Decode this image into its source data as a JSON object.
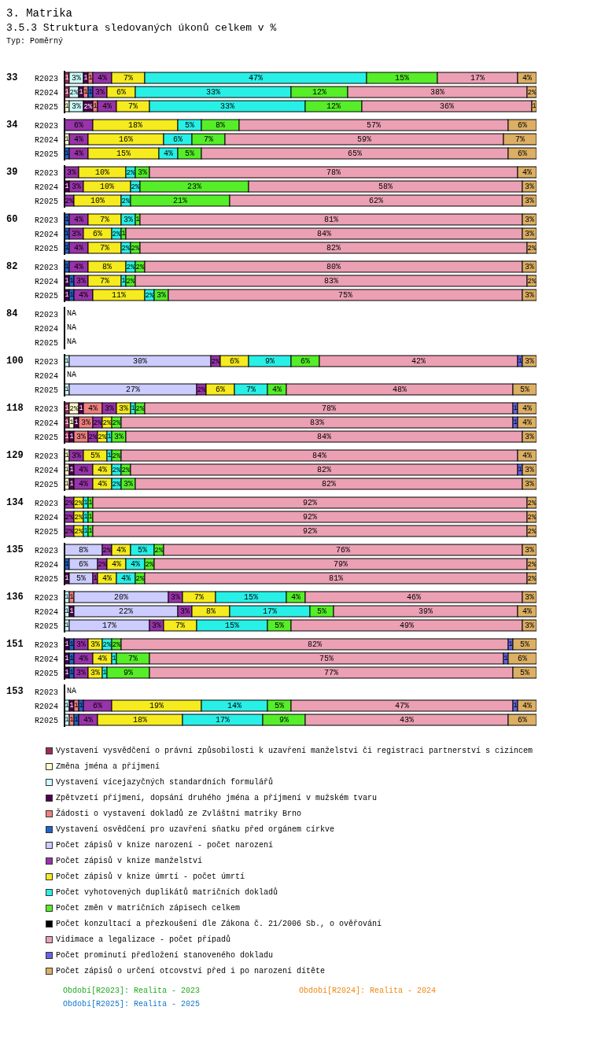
{
  "chart_data": [
    {
      "type": "other",
      "title": "3. Matrika",
      "subtitle": "3.5.3 Struktura sledovaných úkonů celkem v %",
      "annotations": [
        "Typ: Poměrný"
      ]
    },
    {
      "type": "bar",
      "orientation": "horizontal",
      "stacked": true,
      "title": "33",
      "categories": [
        "R2023",
        "R2024",
        "R2025"
      ],
      "series": [
        {
          "color": "#9b2d5a",
          "values": [
            1,
            1,
            null
          ],
          "value_labels": [
            "1",
            "1",
            null
          ]
        },
        {
          "color": "#ffffcc",
          "values": [
            null,
            null,
            1
          ],
          "value_labels": [
            null,
            null,
            "1"
          ]
        },
        {
          "color": "#ccffff",
          "values": [
            3,
            2,
            3
          ],
          "value_labels": [
            "3%",
            "2%",
            "3%"
          ]
        },
        {
          "color": "#500050",
          "values": [
            1,
            1,
            2
          ],
          "value_labels": [
            "1",
            "1",
            "2%"
          ]
        },
        {
          "color": "#f08080",
          "values": [
            1,
            1,
            1
          ],
          "value_labels": [
            "1",
            "1",
            "1"
          ]
        },
        {
          "color": "#1e64c8",
          "values": [
            null,
            1,
            null
          ],
          "value_labels": [
            null,
            "1",
            null
          ]
        },
        {
          "color": "#9933aa",
          "values": [
            4,
            3,
            4
          ],
          "value_labels": [
            "4%",
            "3%",
            "4%"
          ]
        },
        {
          "color": "#f5eb1e",
          "values": [
            7,
            6,
            7
          ],
          "value_labels": [
            "7%",
            "6%",
            "7%"
          ]
        },
        {
          "color": "#28f0e6",
          "values": [
            47,
            33,
            33
          ],
          "value_labels": [
            "47%",
            "33%",
            "33%"
          ]
        },
        {
          "color": "#55ee28",
          "values": [
            15,
            12,
            12
          ],
          "value_labels": [
            "15%",
            "12%",
            "12%"
          ]
        },
        {
          "color": "#eba0b4",
          "values": [
            17,
            38,
            36
          ],
          "value_labels": [
            "17%",
            "38%",
            "36%"
          ]
        },
        {
          "color": "#dcaf64",
          "values": [
            4,
            2,
            1
          ],
          "value_labels": [
            "4%",
            "2%",
            "1"
          ]
        }
      ]
    },
    {
      "type": "bar",
      "orientation": "horizontal",
      "stacked": true,
      "title": "34",
      "categories": [
        "R2023",
        "R2024",
        "R2025"
      ],
      "series": [
        {
          "color": "#ffffcc",
          "values": [
            null,
            1,
            null
          ],
          "value_labels": [
            null,
            "1",
            null
          ]
        },
        {
          "color": "#1e64c8",
          "values": [
            null,
            null,
            1
          ],
          "value_labels": [
            null,
            null,
            "1"
          ]
        },
        {
          "color": "#9933aa",
          "values": [
            6,
            4,
            4
          ],
          "value_labels": [
            "6%",
            "4%",
            "4%"
          ]
        },
        {
          "color": "#f5eb1e",
          "values": [
            18,
            16,
            15
          ],
          "value_labels": [
            "18%",
            "16%",
            "15%"
          ]
        },
        {
          "color": "#28f0e6",
          "values": [
            5,
            6,
            4
          ],
          "value_labels": [
            "5%",
            "6%",
            "4%"
          ]
        },
        {
          "color": "#55ee28",
          "values": [
            8,
            7,
            5
          ],
          "value_labels": [
            "8%",
            "7%",
            "5%"
          ]
        },
        {
          "color": "#eba0b4",
          "values": [
            57,
            59,
            65
          ],
          "value_labels": [
            "57%",
            "59%",
            "65%"
          ]
        },
        {
          "color": "#dcaf64",
          "values": [
            6,
            7,
            6
          ],
          "value_labels": [
            "6%",
            "7%",
            "6%"
          ]
        }
      ]
    },
    {
      "type": "bar",
      "orientation": "horizontal",
      "stacked": true,
      "title": "39",
      "categories": [
        "R2023",
        "R2024",
        "R2025"
      ],
      "series": [
        {
          "color": "#500050",
          "values": [
            null,
            1,
            null
          ],
          "value_labels": [
            null,
            "1",
            null
          ]
        },
        {
          "color": "#9933aa",
          "values": [
            3,
            3,
            2
          ],
          "value_labels": [
            "3%",
            "3%",
            "2%"
          ]
        },
        {
          "color": "#f5eb1e",
          "values": [
            10,
            10,
            10
          ],
          "value_labels": [
            "10%",
            "10%",
            "10%"
          ]
        },
        {
          "color": "#28f0e6",
          "values": [
            2,
            2,
            2
          ],
          "value_labels": [
            "2%",
            "2%",
            "2%"
          ]
        },
        {
          "color": "#55ee28",
          "values": [
            3,
            23,
            21
          ],
          "value_labels": [
            "3%",
            "23%",
            "21%"
          ]
        },
        {
          "color": "#eba0b4",
          "values": [
            78,
            58,
            62
          ],
          "value_labels": [
            "78%",
            "58%",
            "62%"
          ]
        },
        {
          "color": "#dcaf64",
          "values": [
            4,
            3,
            3
          ],
          "value_labels": [
            "4%",
            "3%",
            "3%"
          ]
        }
      ]
    },
    {
      "type": "bar",
      "orientation": "horizontal",
      "stacked": true,
      "title": "60",
      "categories": [
        "R2023",
        "R2024",
        "R2025"
      ],
      "series": [
        {
          "color": "#1e64c8",
          "values": [
            1,
            1,
            1
          ],
          "value_labels": [
            "1",
            "1",
            "1"
          ]
        },
        {
          "color": "#9933aa",
          "values": [
            4,
            3,
            4
          ],
          "value_labels": [
            "4%",
            "3%",
            "4%"
          ]
        },
        {
          "color": "#f5eb1e",
          "values": [
            7,
            6,
            7
          ],
          "value_labels": [
            "7%",
            "6%",
            "7%"
          ]
        },
        {
          "color": "#28f0e6",
          "values": [
            3,
            2,
            2
          ],
          "value_labels": [
            "3%",
            "2%",
            "2%"
          ]
        },
        {
          "color": "#55ee28",
          "values": [
            1,
            1,
            2
          ],
          "value_labels": [
            "1",
            "1",
            "2%"
          ]
        },
        {
          "color": "#eba0b4",
          "values": [
            81,
            84,
            82
          ],
          "value_labels": [
            "81%",
            "84%",
            "82%"
          ]
        },
        {
          "color": "#dcaf64",
          "values": [
            3,
            3,
            2
          ],
          "value_labels": [
            "3%",
            "3%",
            "2%"
          ]
        }
      ]
    },
    {
      "type": "bar",
      "orientation": "horizontal",
      "stacked": true,
      "title": "82",
      "categories": [
        "R2023",
        "R2024",
        "R2025"
      ],
      "series": [
        {
          "color": "#500050",
          "values": [
            null,
            1,
            1
          ],
          "value_labels": [
            null,
            "1",
            "1"
          ]
        },
        {
          "color": "#1e64c8",
          "values": [
            1,
            1,
            1
          ],
          "value_labels": [
            "1",
            "1",
            "1"
          ]
        },
        {
          "color": "#9933aa",
          "values": [
            4,
            3,
            4
          ],
          "value_labels": [
            "4%",
            "3%",
            "4%"
          ]
        },
        {
          "color": "#f5eb1e",
          "values": [
            8,
            7,
            11
          ],
          "value_labels": [
            "8%",
            "7%",
            "11%"
          ]
        },
        {
          "color": "#28f0e6",
          "values": [
            2,
            1,
            2
          ],
          "value_labels": [
            "2%",
            "1",
            "2%"
          ]
        },
        {
          "color": "#55ee28",
          "values": [
            2,
            2,
            3
          ],
          "value_labels": [
            "2%",
            "2%",
            "3%"
          ]
        },
        {
          "color": "#eba0b4",
          "values": [
            80,
            83,
            75
          ],
          "value_labels": [
            "80%",
            "83%",
            "75%"
          ]
        },
        {
          "color": "#dcaf64",
          "values": [
            3,
            2,
            3
          ],
          "value_labels": [
            "3%",
            "2%",
            "3%"
          ]
        }
      ]
    },
    {
      "type": "other",
      "title": "84",
      "categories": [
        "R2023",
        "R2024",
        "R2025"
      ],
      "annotations": [
        {
          "text": "NA",
          "y": "R2023"
        },
        {
          "text": "NA",
          "y": "R2024"
        },
        {
          "text": "NA",
          "y": "R2025"
        }
      ]
    },
    {
      "type": "bar",
      "orientation": "horizontal",
      "stacked": true,
      "title": "100",
      "categories": [
        "R2023",
        "R2024",
        "R2025"
      ],
      "series": [
        {
          "color": "#ccffff",
          "values": [
            1,
            null,
            1
          ],
          "value_labels": [
            "1",
            null,
            "1"
          ]
        },
        {
          "color": "#ccccff",
          "values": [
            30,
            null,
            27
          ],
          "value_labels": [
            "30%",
            null,
            "27%"
          ]
        },
        {
          "color": "#9933aa",
          "values": [
            2,
            null,
            2
          ],
          "value_labels": [
            "2%",
            null,
            "2%"
          ]
        },
        {
          "color": "#f5eb1e",
          "values": [
            6,
            null,
            6
          ],
          "value_labels": [
            "6%",
            null,
            "6%"
          ]
        },
        {
          "color": "#28f0e6",
          "values": [
            9,
            null,
            7
          ],
          "value_labels": [
            "9%",
            null,
            "7%"
          ]
        },
        {
          "color": "#55ee28",
          "values": [
            6,
            null,
            4
          ],
          "value_labels": [
            "6%",
            null,
            "4%"
          ]
        },
        {
          "color": "#eba0b4",
          "values": [
            42,
            null,
            48
          ],
          "value_labels": [
            "42%",
            null,
            "48%"
          ]
        },
        {
          "color": "#6464e6",
          "values": [
            1,
            null,
            null
          ],
          "value_labels": [
            "1",
            null,
            null
          ]
        },
        {
          "color": "#dcaf64",
          "values": [
            3,
            null,
            5
          ],
          "value_labels": [
            "3%",
            null,
            "5%"
          ]
        }
      ],
      "annotations": [
        {
          "text": "NA",
          "y": "R2024"
        }
      ]
    },
    {
      "type": "bar",
      "orientation": "horizontal",
      "stacked": true,
      "title": "118",
      "categories": [
        "R2023",
        "R2024",
        "R2025"
      ],
      "series": [
        {
          "color": "#9b2d5a",
          "values": [
            1,
            1,
            1
          ],
          "value_labels": [
            "1",
            "1",
            "1"
          ]
        },
        {
          "color": "#ffffcc",
          "values": [
            2,
            1,
            null
          ],
          "value_labels": [
            "2%",
            "1",
            null
          ]
        },
        {
          "color": "#500050",
          "values": [
            1,
            1,
            1
          ],
          "value_labels": [
            "1",
            "1",
            "1"
          ]
        },
        {
          "color": "#f08080",
          "values": [
            4,
            3,
            3
          ],
          "value_labels": [
            "4%",
            "3%",
            "3%"
          ]
        },
        {
          "color": "#9933aa",
          "values": [
            3,
            2,
            2
          ],
          "value_labels": [
            "3%",
            "2%",
            "2%"
          ]
        },
        {
          "color": "#f5eb1e",
          "values": [
            3,
            2,
            2
          ],
          "value_labels": [
            "3%",
            "2%",
            "2%"
          ]
        },
        {
          "color": "#28f0e6",
          "values": [
            1,
            null,
            1
          ],
          "value_labels": [
            "1",
            null,
            "1"
          ]
        },
        {
          "color": "#55ee28",
          "values": [
            2,
            2,
            3
          ],
          "value_labels": [
            "2%",
            "2%",
            "3%"
          ]
        },
        {
          "color": "#eba0b4",
          "values": [
            78,
            83,
            84
          ],
          "value_labels": [
            "78%",
            "83%",
            "84%"
          ]
        },
        {
          "color": "#6464e6",
          "values": [
            1,
            1,
            null
          ],
          "value_labels": [
            "1",
            "1",
            null
          ]
        },
        {
          "color": "#dcaf64",
          "values": [
            4,
            4,
            3
          ],
          "value_labels": [
            "4%",
            "4%",
            "3%"
          ]
        }
      ]
    },
    {
      "type": "bar",
      "orientation": "horizontal",
      "stacked": true,
      "title": "129",
      "categories": [
        "R2023",
        "R2024",
        "R2025"
      ],
      "series": [
        {
          "color": "#ffffcc",
          "values": [
            1,
            1,
            1
          ],
          "value_labels": [
            "1",
            "1",
            "1"
          ]
        },
        {
          "color": "#500050",
          "values": [
            null,
            1,
            1
          ],
          "value_labels": [
            null,
            "1",
            "1"
          ]
        },
        {
          "color": "#9933aa",
          "values": [
            3,
            4,
            4
          ],
          "value_labels": [
            "3%",
            "4%",
            "4%"
          ]
        },
        {
          "color": "#f5eb1e",
          "values": [
            5,
            4,
            4
          ],
          "value_labels": [
            "5%",
            "4%",
            "4%"
          ]
        },
        {
          "color": "#28f0e6",
          "values": [
            1,
            2,
            2
          ],
          "value_labels": [
            "1",
            "2%",
            "2%"
          ]
        },
        {
          "color": "#55ee28",
          "values": [
            2,
            2,
            3
          ],
          "value_labels": [
            "2%",
            "2%",
            "3%"
          ]
        },
        {
          "color": "#eba0b4",
          "values": [
            84,
            82,
            82
          ],
          "value_labels": [
            "84%",
            "82%",
            "82%"
          ]
        },
        {
          "color": "#6464e6",
          "values": [
            null,
            1,
            null
          ],
          "value_labels": [
            null,
            "1",
            null
          ]
        },
        {
          "color": "#dcaf64",
          "values": [
            4,
            3,
            3
          ],
          "value_labels": [
            "4%",
            "3%",
            "3%"
          ]
        }
      ]
    },
    {
      "type": "bar",
      "orientation": "horizontal",
      "stacked": true,
      "title": "134",
      "categories": [
        "R2023",
        "R2024",
        "R2025"
      ],
      "series": [
        {
          "color": "#9933aa",
          "values": [
            2,
            2,
            2
          ],
          "value_labels": [
            "2%",
            "2%",
            "2%"
          ]
        },
        {
          "color": "#f5eb1e",
          "values": [
            2,
            2,
            2
          ],
          "value_labels": [
            "2%",
            "2%",
            "2%"
          ]
        },
        {
          "color": "#28f0e6",
          "values": [
            1,
            1,
            1
          ],
          "value_labels": [
            "1",
            "1",
            "1"
          ]
        },
        {
          "color": "#55ee28",
          "values": [
            1,
            1,
            1
          ],
          "value_labels": [
            "1",
            "1",
            "1"
          ]
        },
        {
          "color": "#eba0b4",
          "values": [
            92,
            92,
            92
          ],
          "value_labels": [
            "92%",
            "92%",
            "92%"
          ]
        },
        {
          "color": "#dcaf64",
          "values": [
            2,
            2,
            2
          ],
          "value_labels": [
            "2%",
            "2%",
            "2%"
          ]
        }
      ]
    },
    {
      "type": "bar",
      "orientation": "horizontal",
      "stacked": true,
      "title": "135",
      "categories": [
        "R2023",
        "R2024",
        "R2025"
      ],
      "series": [
        {
          "color": "#500050",
          "values": [
            null,
            null,
            1
          ],
          "value_labels": [
            null,
            null,
            "1"
          ]
        },
        {
          "color": "#1e64c8",
          "values": [
            null,
            1,
            null
          ],
          "value_labels": [
            null,
            "1",
            null
          ]
        },
        {
          "color": "#ccccff",
          "values": [
            8,
            6,
            5
          ],
          "value_labels": [
            "8%",
            "6%",
            "5%"
          ]
        },
        {
          "color": "#9933aa",
          "values": [
            2,
            2,
            1
          ],
          "value_labels": [
            "2%",
            "2%",
            "1"
          ]
        },
        {
          "color": "#f5eb1e",
          "values": [
            4,
            4,
            4
          ],
          "value_labels": [
            "4%",
            "4%",
            "4%"
          ]
        },
        {
          "color": "#28f0e6",
          "values": [
            5,
            4,
            4
          ],
          "value_labels": [
            "5%",
            "4%",
            "4%"
          ]
        },
        {
          "color": "#55ee28",
          "values": [
            2,
            2,
            2
          ],
          "value_labels": [
            "2%",
            "2%",
            "2%"
          ]
        },
        {
          "color": "#eba0b4",
          "values": [
            76,
            79,
            81
          ],
          "value_labels": [
            "76%",
            "79%",
            "81%"
          ]
        },
        {
          "color": "#dcaf64",
          "values": [
            3,
            2,
            2
          ],
          "value_labels": [
            "3%",
            "2%",
            "2%"
          ]
        }
      ]
    },
    {
      "type": "bar",
      "orientation": "horizontal",
      "stacked": true,
      "title": "136",
      "categories": [
        "R2023",
        "R2024",
        "R2025"
      ],
      "series": [
        {
          "color": "#ccffff",
          "values": [
            1,
            1,
            1
          ],
          "value_labels": [
            "1",
            "1",
            "1"
          ]
        },
        {
          "color": "#500050",
          "values": [
            null,
            1,
            null
          ],
          "value_labels": [
            null,
            "1",
            null
          ]
        },
        {
          "color": "#f08080",
          "values": [
            1,
            null,
            null
          ],
          "value_labels": [
            "1",
            null,
            null
          ]
        },
        {
          "color": "#ccccff",
          "values": [
            20,
            22,
            17
          ],
          "value_labels": [
            "20%",
            "22%",
            "17%"
          ]
        },
        {
          "color": "#9933aa",
          "values": [
            3,
            3,
            3
          ],
          "value_labels": [
            "3%",
            "3%",
            "3%"
          ]
        },
        {
          "color": "#f5eb1e",
          "values": [
            7,
            8,
            7
          ],
          "value_labels": [
            "7%",
            "8%",
            "7%"
          ]
        },
        {
          "color": "#28f0e6",
          "values": [
            15,
            17,
            15
          ],
          "value_labels": [
            "15%",
            "17%",
            "15%"
          ]
        },
        {
          "color": "#55ee28",
          "values": [
            4,
            5,
            5
          ],
          "value_labels": [
            "4%",
            "5%",
            "5%"
          ]
        },
        {
          "color": "#eba0b4",
          "values": [
            46,
            39,
            49
          ],
          "value_labels": [
            "46%",
            "39%",
            "49%"
          ]
        },
        {
          "color": "#dcaf64",
          "values": [
            3,
            4,
            3
          ],
          "value_labels": [
            "3%",
            "4%",
            "3%"
          ]
        }
      ]
    },
    {
      "type": "bar",
      "orientation": "horizontal",
      "stacked": true,
      "title": "151",
      "categories": [
        "R2023",
        "R2024",
        "R2025"
      ],
      "series": [
        {
          "color": "#500050",
          "values": [
            1,
            1,
            1
          ],
          "value_labels": [
            "1",
            "1",
            "1"
          ]
        },
        {
          "color": "#1e64c8",
          "values": [
            1,
            1,
            1
          ],
          "value_labels": [
            "1",
            "1",
            "1"
          ]
        },
        {
          "color": "#9933aa",
          "values": [
            3,
            4,
            3
          ],
          "value_labels": [
            "3%",
            "4%",
            "3%"
          ]
        },
        {
          "color": "#f5eb1e",
          "values": [
            3,
            4,
            3
          ],
          "value_labels": [
            "3%",
            "4%",
            "3%"
          ]
        },
        {
          "color": "#28f0e6",
          "values": [
            2,
            1,
            1
          ],
          "value_labels": [
            "2%",
            "1",
            "1"
          ]
        },
        {
          "color": "#55ee28",
          "values": [
            2,
            7,
            9
          ],
          "value_labels": [
            "2%",
            "7%",
            "9%"
          ]
        },
        {
          "color": "#eba0b4",
          "values": [
            82,
            75,
            77
          ],
          "value_labels": [
            "82%",
            "75%",
            "77%"
          ]
        },
        {
          "color": "#6464e6",
          "values": [
            1,
            1,
            null
          ],
          "value_labels": [
            "1",
            "1",
            null
          ]
        },
        {
          "color": "#dcaf64",
          "values": [
            5,
            6,
            5
          ],
          "value_labels": [
            "5%",
            "6%",
            "5%"
          ]
        }
      ]
    },
    {
      "type": "bar",
      "orientation": "horizontal",
      "stacked": true,
      "title": "153",
      "categories": [
        "R2023",
        "R2024",
        "R2025"
      ],
      "legend": "bottom",
      "annotations": [
        {
          "text": "NA",
          "y": "R2023"
        }
      ],
      "series": [
        {
          "name": "Vystavení vysvědčení o právní způsobilosti k uzavření manželství či registraci partnerství s cizincem",
          "color": "#9b2d5a",
          "values": [
            null,
            null,
            null
          ]
        },
        {
          "name": "Změna jména a příjmení",
          "color": "#ffffcc",
          "values": [
            null,
            null,
            null
          ]
        },
        {
          "name": "Vystavení vícejazyčných standardních formulářů",
          "color": "#ccffff",
          "values": [
            null,
            1,
            1
          ],
          "value_labels": [
            null,
            "1",
            "1"
          ]
        },
        {
          "name": "Zpětvzetí příjmení, dopsání druhého jména a příjmení v mužském tvaru",
          "color": "#500050",
          "values": [
            null,
            1,
            null
          ],
          "value_labels": [
            null,
            "1",
            null
          ]
        },
        {
          "name": "Žádosti o vystavení dokladů ze Zvláštní matriky Brno",
          "color": "#f08080",
          "values": [
            null,
            1,
            1
          ],
          "value_labels": [
            null,
            "1",
            "1"
          ]
        },
        {
          "name": "Vystavení osvědčení pro uzavření sňatku před orgánem církve",
          "color": "#1e64c8",
          "values": [
            null,
            1,
            1
          ],
          "value_labels": [
            null,
            "1",
            "1"
          ]
        },
        {
          "name": "Počet zápisů v knize narození - počet narození",
          "color": "#ccccff",
          "values": [
            null,
            null,
            null
          ]
        },
        {
          "name": "Počet zápisů v knize manželství",
          "color": "#9933aa",
          "values": [
            null,
            6,
            4
          ],
          "value_labels": [
            null,
            "6%",
            "4%"
          ]
        },
        {
          "name": "Počet zápisů v knize úmrtí - počet úmrtí",
          "color": "#f5eb1e",
          "values": [
            null,
            19,
            18
          ],
          "value_labels": [
            null,
            "19%",
            "18%"
          ]
        },
        {
          "name": "Počet vyhotovených duplikátů matričních dokladů",
          "color": "#28f0e6",
          "values": [
            null,
            14,
            17
          ],
          "value_labels": [
            null,
            "14%",
            "17%"
          ]
        },
        {
          "name": "Počet změn v matričních zápisech celkem",
          "color": "#55ee28",
          "values": [
            null,
            5,
            9
          ],
          "value_labels": [
            null,
            "5%",
            "9%"
          ]
        },
        {
          "name": "Počet  konzultací a přezkoušení dle Zákona č. 21/2006 Sb., o ověřování",
          "color": "#000000",
          "values": [
            null,
            null,
            null
          ]
        },
        {
          "name": "Vidimace a legalizace - počet případů",
          "color": "#eba0b4",
          "values": [
            null,
            47,
            43
          ],
          "value_labels": [
            null,
            "47%",
            "43%"
          ]
        },
        {
          "name": "Počet prominutí předložení stanoveného dokladu",
          "color": "#6464e6",
          "values": [
            null,
            1,
            null
          ],
          "value_labels": [
            null,
            "1",
            null
          ]
        },
        {
          "name": "Počet zápisů o určení otcovství před i po narození dítěte",
          "color": "#dcaf64",
          "values": [
            null,
            4,
            6
          ],
          "value_labels": [
            null,
            "4%",
            "6%"
          ]
        }
      ]
    },
    {
      "type": "other",
      "annotations": [
        "Období[R2023]: Realita - 2023",
        "Období[R2024]: Realita - 2024",
        "Období[R2025]: Realita - 2025"
      ]
    }
  ]
}
